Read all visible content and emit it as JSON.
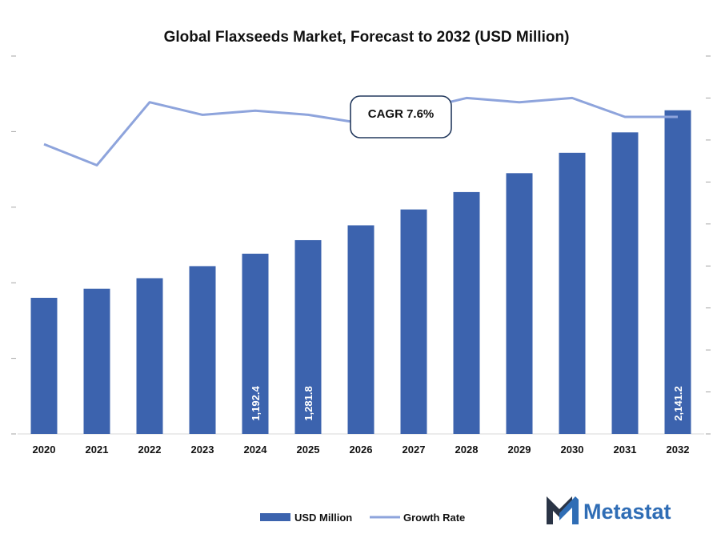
{
  "chart_data": {
    "type": "bar",
    "title": "Global Flaxseeds Market, Forecast to 2032 (USD Million)",
    "categories": [
      "2020",
      "2021",
      "2022",
      "2023",
      "2024",
      "2025",
      "2026",
      "2027",
      "2028",
      "2029",
      "2030",
      "2031",
      "2032"
    ],
    "series": [
      {
        "name": "USD Million",
        "type": "bar",
        "axis": "left",
        "values": [
          900.5,
          960.3,
          1030.2,
          1110.0,
          1192.4,
          1281.8,
          1380.0,
          1485.0,
          1600.0,
          1725.0,
          1860.0,
          1995.0,
          2141.2
        ],
        "labels": [
          "",
          "",
          "",
          "",
          "1,192.4",
          "1,281.8",
          "",
          "",
          "",
          "",
          "",
          "",
          "2,141.2"
        ]
      },
      {
        "name": "Growth Rate",
        "type": "line",
        "axis": "right",
        "values": [
          6.9,
          6.4,
          7.9,
          7.6,
          7.7,
          7.6,
          7.4,
          7.7,
          8.0,
          7.9,
          8.0,
          7.55,
          7.55
        ]
      }
    ],
    "ylim_left": [
      0,
      2500
    ],
    "ylim_right": [
      0,
      9
    ],
    "annotation": "CAGR 7.6%",
    "legend_position": "bottom-center",
    "colors": {
      "bar": "#3c63ae",
      "line": "#8ea4dc",
      "axis_tick": "#a6a6a6"
    }
  },
  "brand": {
    "name": "Metastat",
    "color": "#2f6db5",
    "dark": "#2a3446"
  }
}
